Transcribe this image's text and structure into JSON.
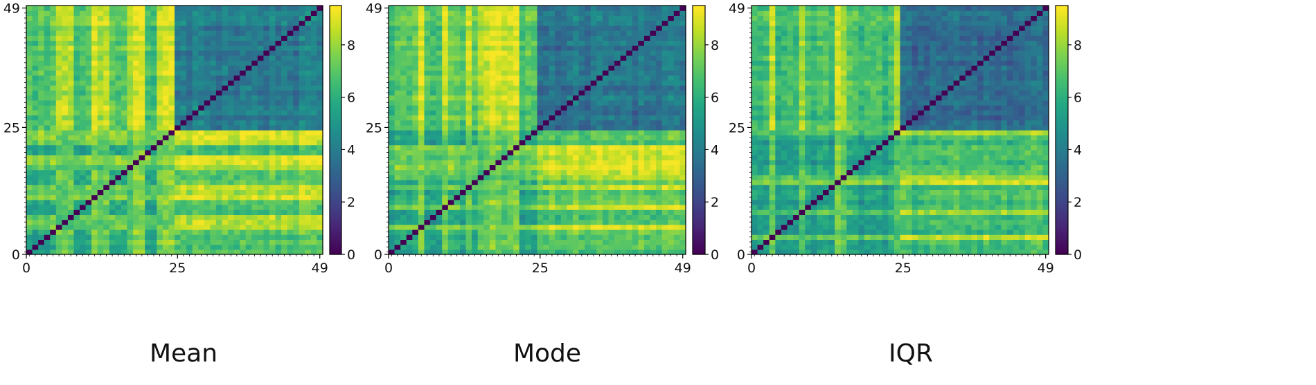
{
  "chart_data": [
    {
      "type": "heatmap",
      "title": "Mean",
      "n": 50,
      "xticks": [
        0,
        25,
        49
      ],
      "yticks": [
        0,
        25,
        49
      ],
      "colorbar": {
        "min": 0,
        "max": 9.5,
        "ticks": [
          0,
          2,
          4,
          6,
          8
        ]
      },
      "block_means": {
        "low_block": 5.5,
        "high_block": 4.0,
        "cross_block": 6.8
      },
      "bright_columns": [
        5,
        6,
        7,
        11,
        12,
        13,
        17,
        18,
        19,
        22,
        23,
        24
      ]
    },
    {
      "type": "heatmap",
      "title": "Mode",
      "n": 50,
      "xticks": [
        0,
        25,
        49
      ],
      "yticks": [
        0,
        25,
        49
      ],
      "colorbar": {
        "min": 0,
        "max": 9.5,
        "ticks": [
          0,
          2,
          4,
          6,
          8
        ]
      },
      "block_means": {
        "low_block": 5.3,
        "high_block": 3.8,
        "cross_block": 6.9
      },
      "bright_columns": [
        5,
        9,
        13,
        15,
        16,
        17,
        18,
        19,
        20,
        21
      ]
    },
    {
      "type": "heatmap",
      "title": "IQR",
      "n": 50,
      "xticks": [
        0,
        25,
        49
      ],
      "yticks": [
        0,
        25,
        49
      ],
      "colorbar": {
        "min": 0,
        "max": 9.5,
        "ticks": [
          0,
          2,
          4,
          6,
          8
        ]
      },
      "block_means": {
        "low_block": 5.2,
        "high_block": 3.4,
        "cross_block": 6.6
      },
      "bright_columns": [
        3,
        8,
        14,
        15,
        24
      ]
    }
  ]
}
